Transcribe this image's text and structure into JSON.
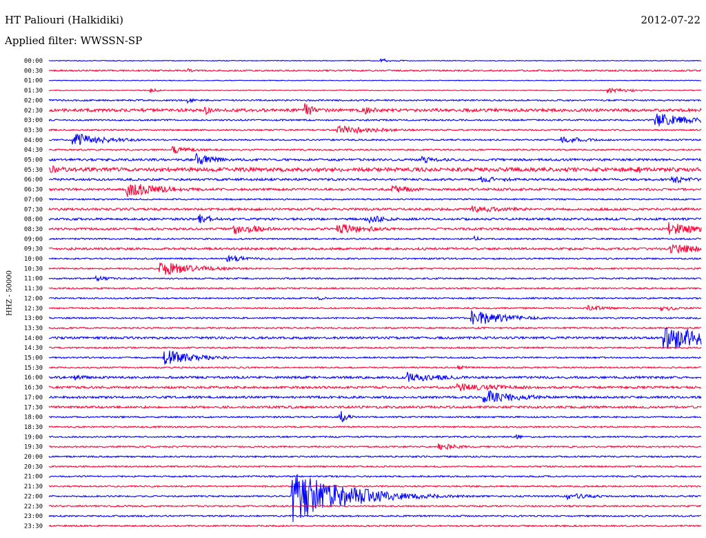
{
  "header": {
    "station": "HT Paliouri (Halkidiki)",
    "filter": "Applied filter: WWSSN-SP",
    "date": "2012-07-22",
    "channel": "HHZ - 50000"
  },
  "colors": {
    "trace_even": "#0000ff",
    "trace_odd": "#ff0033",
    "background": "#ffffff"
  },
  "chart_data": {
    "type": "line",
    "title": "HT Paliouri (Halkidiki)",
    "subtitle": "Applied filter: WWSSN-SP",
    "ylabel": "HHZ - 50000",
    "xlabel": "",
    "x_unit": "minutes within row",
    "xlim": [
      0,
      30
    ],
    "row_labels": [
      "00:00",
      "00:30",
      "01:00",
      "01:30",
      "02:00",
      "02:30",
      "03:00",
      "03:30",
      "04:00",
      "04:30",
      "05:00",
      "05:30",
      "06:00",
      "06:30",
      "07:00",
      "07:30",
      "08:00",
      "08:30",
      "09:00",
      "09:30",
      "10:00",
      "10:30",
      "11:00",
      "11:30",
      "12:00",
      "12:30",
      "13:00",
      "13:30",
      "14:00",
      "14:30",
      "15:00",
      "15:30",
      "16:00",
      "16:30",
      "17:00",
      "17:30",
      "18:00",
      "18:30",
      "19:00",
      "19:30",
      "20:00",
      "20:30",
      "21:00",
      "21:30",
      "22:00",
      "22:30",
      "23:00",
      "23:30"
    ],
    "row_noise": [
      1,
      2,
      1,
      1,
      2,
      4,
      2,
      2,
      2,
      2,
      3,
      5,
      3,
      3,
      2,
      3,
      3,
      3,
      2,
      3,
      2,
      2,
      2,
      2,
      2,
      2,
      2,
      2,
      3,
      2,
      2,
      2,
      3,
      3,
      3,
      3,
      2,
      2,
      2,
      2,
      2,
      2,
      2,
      2,
      2,
      2,
      2,
      2
    ],
    "events": [
      {
        "row": 0,
        "minute": 15.3,
        "amp": 3,
        "dur": 0.8
      },
      {
        "row": 1,
        "minute": 6.4,
        "amp": 3,
        "dur": 0.3
      },
      {
        "row": 3,
        "minute": 4.7,
        "amp": 4,
        "dur": 0.3
      },
      {
        "row": 3,
        "minute": 25.7,
        "amp": 4,
        "dur": 1.2
      },
      {
        "row": 4,
        "minute": 6.4,
        "amp": 4,
        "dur": 0.3
      },
      {
        "row": 5,
        "minute": 7.2,
        "amp": 8,
        "dur": 0.3
      },
      {
        "row": 5,
        "minute": 11.8,
        "amp": 12,
        "dur": 0.4
      },
      {
        "row": 5,
        "minute": 14.5,
        "amp": 6,
        "dur": 0.8
      },
      {
        "row": 6,
        "minute": 27.9,
        "amp": 11,
        "dur": 1.6
      },
      {
        "row": 7,
        "minute": 13.3,
        "amp": 7,
        "dur": 2.0
      },
      {
        "row": 8,
        "minute": 1.1,
        "amp": 11,
        "dur": 1.5
      },
      {
        "row": 8,
        "minute": 23.6,
        "amp": 6,
        "dur": 1.2
      },
      {
        "row": 9,
        "minute": 5.7,
        "amp": 6,
        "dur": 1.2
      },
      {
        "row": 10,
        "minute": 6.8,
        "amp": 9,
        "dur": 1.0
      },
      {
        "row": 10,
        "minute": 17.2,
        "amp": 5,
        "dur": 1.2
      },
      {
        "row": 11,
        "minute": 0.1,
        "amp": 6,
        "dur": 1.0
      },
      {
        "row": 11,
        "minute": 27.0,
        "amp": 8,
        "dur": 0.3
      },
      {
        "row": 12,
        "minute": 19.9,
        "amp": 5,
        "dur": 1.5
      },
      {
        "row": 12,
        "minute": 28.6,
        "amp": 6,
        "dur": 1.2
      },
      {
        "row": 13,
        "minute": 3.6,
        "amp": 11,
        "dur": 1.8
      },
      {
        "row": 13,
        "minute": 15.8,
        "amp": 6,
        "dur": 1.2
      },
      {
        "row": 15,
        "minute": 19.5,
        "amp": 5,
        "dur": 2.5
      },
      {
        "row": 16,
        "minute": 6.9,
        "amp": 8,
        "dur": 0.8
      },
      {
        "row": 16,
        "minute": 14.5,
        "amp": 7,
        "dur": 1.2
      },
      {
        "row": 17,
        "minute": 8.5,
        "amp": 8,
        "dur": 1.5
      },
      {
        "row": 17,
        "minute": 13.3,
        "amp": 8,
        "dur": 1.8
      },
      {
        "row": 17,
        "minute": 28.5,
        "amp": 10,
        "dur": 1.6
      },
      {
        "row": 18,
        "minute": 19.6,
        "amp": 4,
        "dur": 0.3
      },
      {
        "row": 19,
        "minute": 28.6,
        "amp": 8,
        "dur": 1.8
      },
      {
        "row": 20,
        "minute": 8.2,
        "amp": 5,
        "dur": 1.5
      },
      {
        "row": 21,
        "minute": 5.1,
        "amp": 11,
        "dur": 1.8
      },
      {
        "row": 22,
        "minute": 2.2,
        "amp": 4,
        "dur": 0.8
      },
      {
        "row": 24,
        "minute": 12.4,
        "amp": 4,
        "dur": 0.3
      },
      {
        "row": 25,
        "minute": 24.8,
        "amp": 4,
        "dur": 1.2
      },
      {
        "row": 25,
        "minute": 28.2,
        "amp": 5,
        "dur": 0.8
      },
      {
        "row": 26,
        "minute": 19.4,
        "amp": 13,
        "dur": 1.6
      },
      {
        "row": 28,
        "minute": 28.3,
        "amp": 20,
        "dur": 2.4
      },
      {
        "row": 30,
        "minute": 5.3,
        "amp": 12,
        "dur": 1.5
      },
      {
        "row": 31,
        "minute": 18.8,
        "amp": 3,
        "dur": 0.8
      },
      {
        "row": 32,
        "minute": 1.1,
        "amp": 5,
        "dur": 0.8
      },
      {
        "row": 32,
        "minute": 16.5,
        "amp": 8,
        "dur": 1.8
      },
      {
        "row": 33,
        "minute": 18.8,
        "amp": 6,
        "dur": 3.0
      },
      {
        "row": 34,
        "minute": 20.0,
        "amp": 11,
        "dur": 1.8
      },
      {
        "row": 36,
        "minute": 13.4,
        "amp": 14,
        "dur": 0.3
      },
      {
        "row": 38,
        "minute": 21.5,
        "amp": 4,
        "dur": 0.3
      },
      {
        "row": 39,
        "minute": 17.9,
        "amp": 6,
        "dur": 1.0
      },
      {
        "row": 44,
        "minute": 11.2,
        "amp": 40,
        "dur": 2.5
      },
      {
        "row": 44,
        "minute": 23.8,
        "amp": 6,
        "dur": 1.2
      }
    ]
  }
}
